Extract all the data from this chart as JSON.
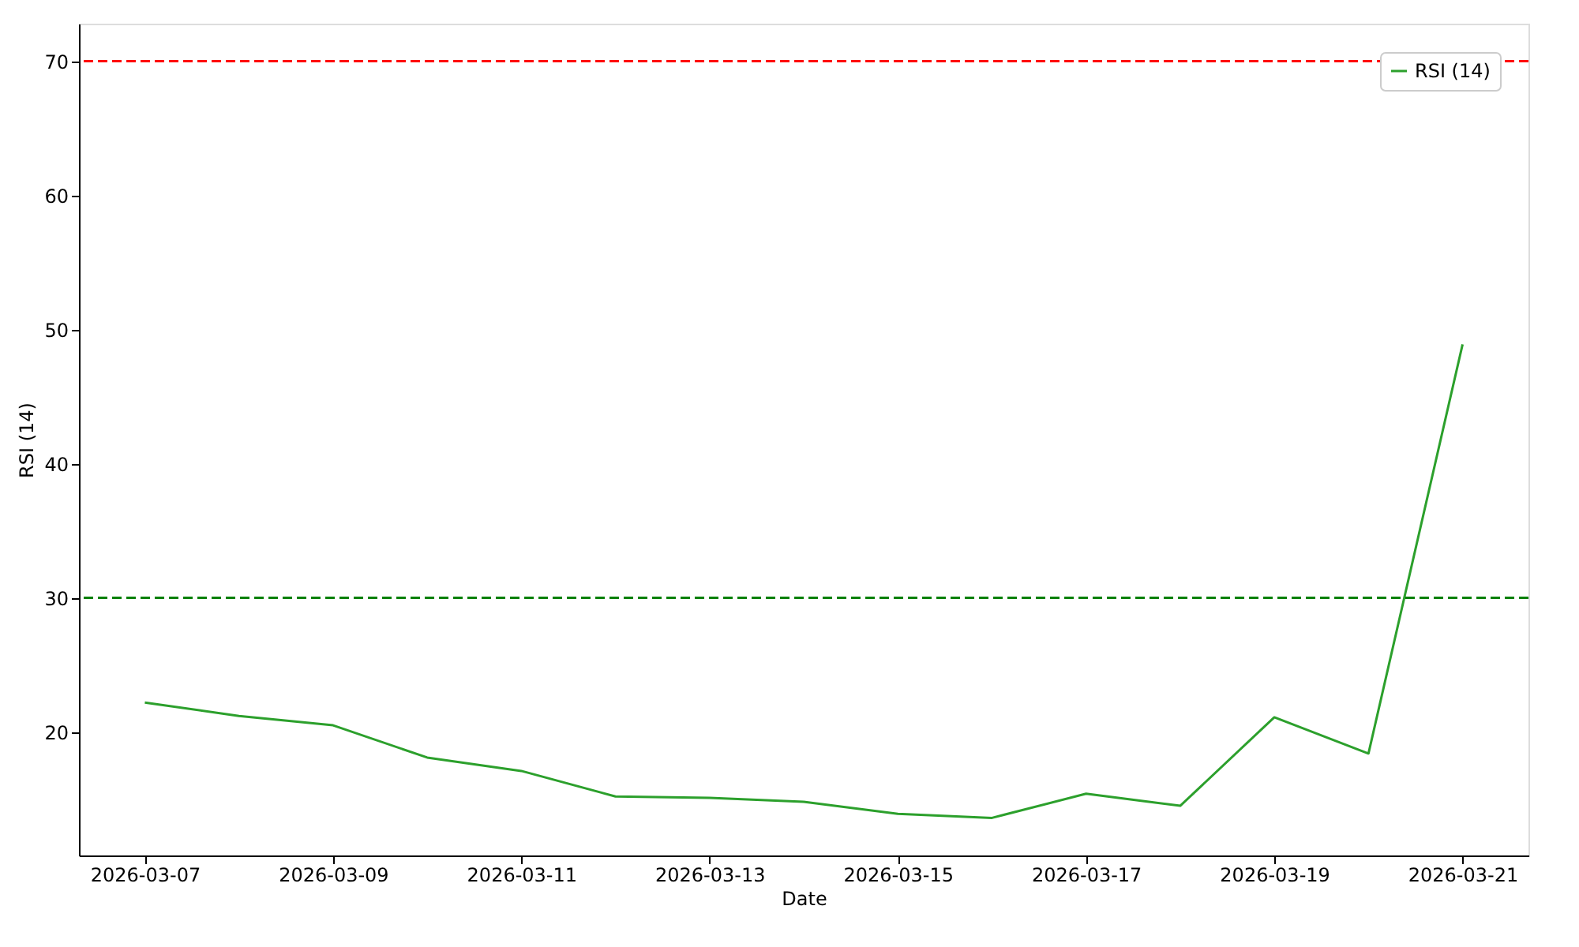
{
  "chart_data": {
    "type": "line",
    "xlabel": "Date",
    "ylabel": "RSI (14)",
    "x": [
      "2026-03-07",
      "2026-03-08",
      "2026-03-09",
      "2026-03-10",
      "2026-03-11",
      "2026-03-12",
      "2026-03-13",
      "2026-03-14",
      "2026-03-15",
      "2026-03-16",
      "2026-03-17",
      "2026-03-18",
      "2026-03-19",
      "2026-03-20",
      "2026-03-21"
    ],
    "series": [
      {
        "name": "RSI (14)",
        "color": "#2ca02c",
        "values": [
          22.2,
          21.2,
          20.5,
          18.1,
          17.1,
          15.2,
          15.1,
          14.8,
          13.9,
          13.6,
          15.4,
          14.5,
          21.1,
          18.4,
          48.9
        ]
      }
    ],
    "xlim": [
      "2026-03-06T07:12",
      "2026-03-21T16:48"
    ],
    "xticks": [
      "2026-03-07",
      "2026-03-09",
      "2026-03-11",
      "2026-03-13",
      "2026-03-15",
      "2026-03-17",
      "2026-03-19",
      "2026-03-21"
    ],
    "ylim": [
      10.8,
      72.8
    ],
    "yticks": [
      20,
      30,
      40,
      50,
      60,
      70
    ],
    "ref_lines": [
      {
        "axis": "y",
        "value": 70,
        "color": "#ff0000",
        "line_style": "dashed"
      },
      {
        "axis": "y",
        "value": 30,
        "color": "#008000",
        "line_style": "dashed"
      }
    ],
    "legend": "top right",
    "grid": false,
    "marker": "none",
    "line_style": "solid"
  }
}
